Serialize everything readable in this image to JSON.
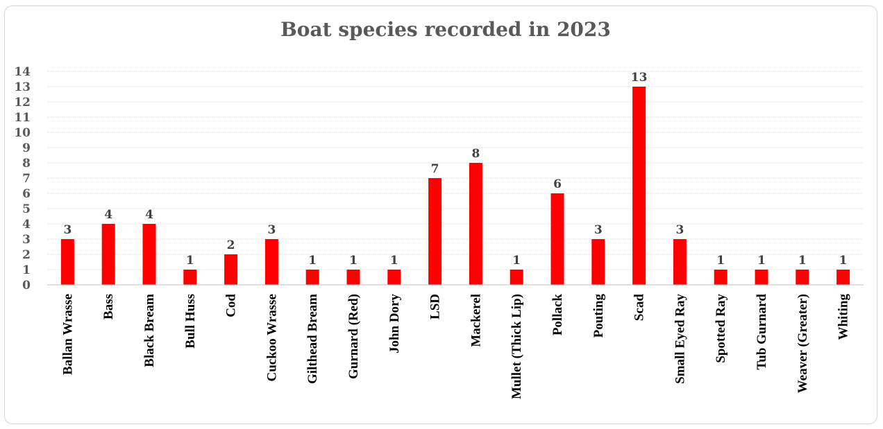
{
  "chart_data": {
    "type": "bar",
    "title": "Boat species recorded in 2023",
    "xlabel": "",
    "ylabel": "",
    "ylim": [
      0,
      14
    ],
    "yticks": [
      0,
      1,
      2,
      3,
      4,
      5,
      6,
      7,
      8,
      9,
      10,
      11,
      12,
      13,
      14
    ],
    "grid": true,
    "legend": "none",
    "bar_color": "#ff0000",
    "categories": [
      "Ballan Wrasse",
      "Bass",
      "Black Bream",
      "Bull Huss",
      "Cod",
      "Cuckoo Wrasse",
      "Gilthead Bream",
      "Gurnard (Red)",
      "John Dory",
      "LSD",
      "Mackerel",
      "Mullet (Thick  Lip)",
      "Pollack",
      "Pouting",
      "Scad",
      "Small Eyed Ray",
      "Spotted Ray",
      "Tub Gurnard",
      "Weaver (Greater)",
      "Whiting"
    ],
    "values": [
      3,
      4,
      4,
      1,
      2,
      3,
      1,
      1,
      1,
      7,
      8,
      1,
      6,
      3,
      13,
      3,
      1,
      1,
      1,
      1
    ]
  }
}
